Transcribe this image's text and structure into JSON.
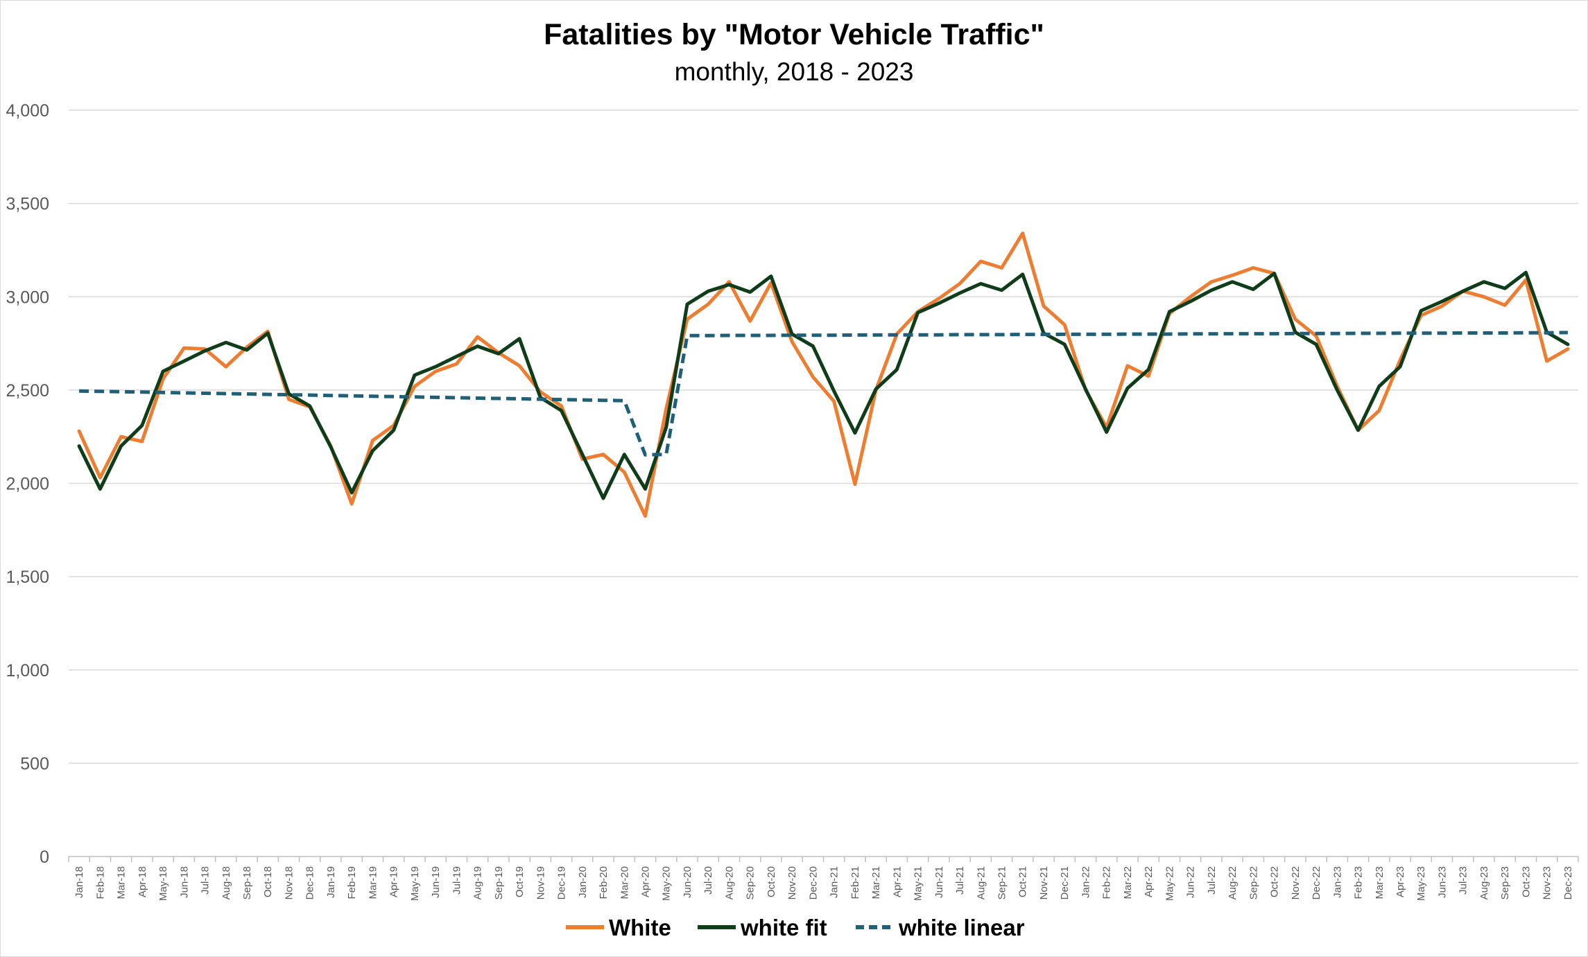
{
  "chart_data": {
    "type": "line",
    "title": "Fatalities by \"Motor Vehicle Traffic\"",
    "subtitle": "monthly, 2018 - 2023",
    "ylim": [
      0,
      4000
    ],
    "yticks": [
      0,
      500,
      1000,
      1500,
      2000,
      2500,
      3000,
      3500,
      4000
    ],
    "ytick_labels": [
      "0",
      "500",
      "1,000",
      "1,500",
      "2,000",
      "2,500",
      "3,000",
      "3,500",
      "4,000"
    ],
    "grid": "horizontal",
    "legend_position": "bottom",
    "x": [
      "Jan-18",
      "Feb-18",
      "Mar-18",
      "Apr-18",
      "May-18",
      "Jun-18",
      "Jul-18",
      "Aug-18",
      "Sep-18",
      "Oct-18",
      "Nov-18",
      "Dec-18",
      "Jan-19",
      "Feb-19",
      "Mar-19",
      "Apr-19",
      "May-19",
      "Jun-19",
      "Jul-19",
      "Aug-19",
      "Sep-19",
      "Oct-19",
      "Nov-19",
      "Dec-19",
      "Jan-20",
      "Feb-20",
      "Mar-20",
      "Apr-20",
      "May-20",
      "Jun-20",
      "Jul-20",
      "Aug-20",
      "Sep-20",
      "Oct-20",
      "Nov-20",
      "Dec-20",
      "Jan-21",
      "Feb-21",
      "Mar-21",
      "Apr-21",
      "May-21",
      "Jun-21",
      "Jul-21",
      "Aug-21",
      "Sep-21",
      "Oct-21",
      "Nov-21",
      "Dec-21",
      "Jan-22",
      "Feb-22",
      "Mar-22",
      "Apr-22",
      "May-22",
      "Jun-22",
      "Jul-22",
      "Aug-22",
      "Sep-22",
      "Oct-22",
      "Nov-22",
      "Dec-22",
      "Jan-23",
      "Feb-23",
      "Mar-23",
      "Apr-23",
      "May-23",
      "Jun-23",
      "Jul-23",
      "Aug-23",
      "Sep-23",
      "Oct-23",
      "Nov-23",
      "Dec-23"
    ],
    "series": [
      {
        "name": "White",
        "color": "#ed7d31",
        "style": "solid",
        "values": [
          2280,
          2030,
          2250,
          2225,
          2560,
          2725,
          2720,
          2625,
          2730,
          2815,
          2450,
          2410,
          2200,
          1890,
          2230,
          2310,
          2520,
          2600,
          2640,
          2785,
          2700,
          2630,
          2490,
          2415,
          2130,
          2155,
          2060,
          1825,
          2400,
          2880,
          2960,
          3080,
          2870,
          3075,
          2760,
          2570,
          2440,
          1995,
          2500,
          2800,
          2920,
          2990,
          3070,
          3190,
          3155,
          3340,
          2950,
          2850,
          2500,
          2300,
          2630,
          2575,
          2910,
          3000,
          3080,
          3115,
          3155,
          3125,
          2880,
          2790,
          2520,
          2285,
          2390,
          2660,
          2900,
          2950,
          3030,
          3000,
          2955,
          3090,
          2655,
          2720
        ]
      },
      {
        "name": "white fit",
        "color": "#0f3d1a",
        "style": "solid",
        "values": [
          2200,
          1970,
          2200,
          2310,
          2600,
          2655,
          2710,
          2755,
          2715,
          2805,
          2480,
          2415,
          2195,
          1950,
          2175,
          2285,
          2580,
          2625,
          2680,
          2735,
          2695,
          2775,
          2460,
          2390,
          2155,
          1920,
          2155,
          1970,
          2300,
          2960,
          3030,
          3065,
          3025,
          3110,
          2800,
          2735,
          2495,
          2270,
          2505,
          2610,
          2915,
          2965,
          3020,
          3070,
          3035,
          3120,
          2805,
          2745,
          2505,
          2275,
          2510,
          2610,
          2920,
          2975,
          3035,
          3080,
          3040,
          3125,
          2810,
          2745,
          2500,
          2285,
          2520,
          2625,
          2925,
          2975,
          3030,
          3080,
          3045,
          3130,
          2810,
          2745
        ]
      },
      {
        "name": "white linear",
        "color": "#1f5f78",
        "style": "dashed",
        "values": [
          2495,
          2493,
          2491,
          2489,
          2487,
          2485,
          2483,
          2481,
          2479,
          2477,
          2475,
          2473,
          2471,
          2469,
          2467,
          2465,
          2463,
          2461,
          2459,
          2457,
          2455,
          2453,
          2451,
          2449,
          2447,
          2445,
          2443,
          2153,
          2155,
          2792,
          2792,
          2793,
          2793,
          2793,
          2794,
          2794,
          2794,
          2795,
          2795,
          2796,
          2796,
          2796,
          2797,
          2797,
          2797,
          2798,
          2798,
          2799,
          2799,
          2799,
          2800,
          2800,
          2800,
          2801,
          2801,
          2802,
          2802,
          2802,
          2803,
          2803,
          2803,
          2804,
          2804,
          2805,
          2805,
          2805,
          2806,
          2806,
          2806,
          2807,
          2807,
          2808
        ]
      }
    ]
  }
}
